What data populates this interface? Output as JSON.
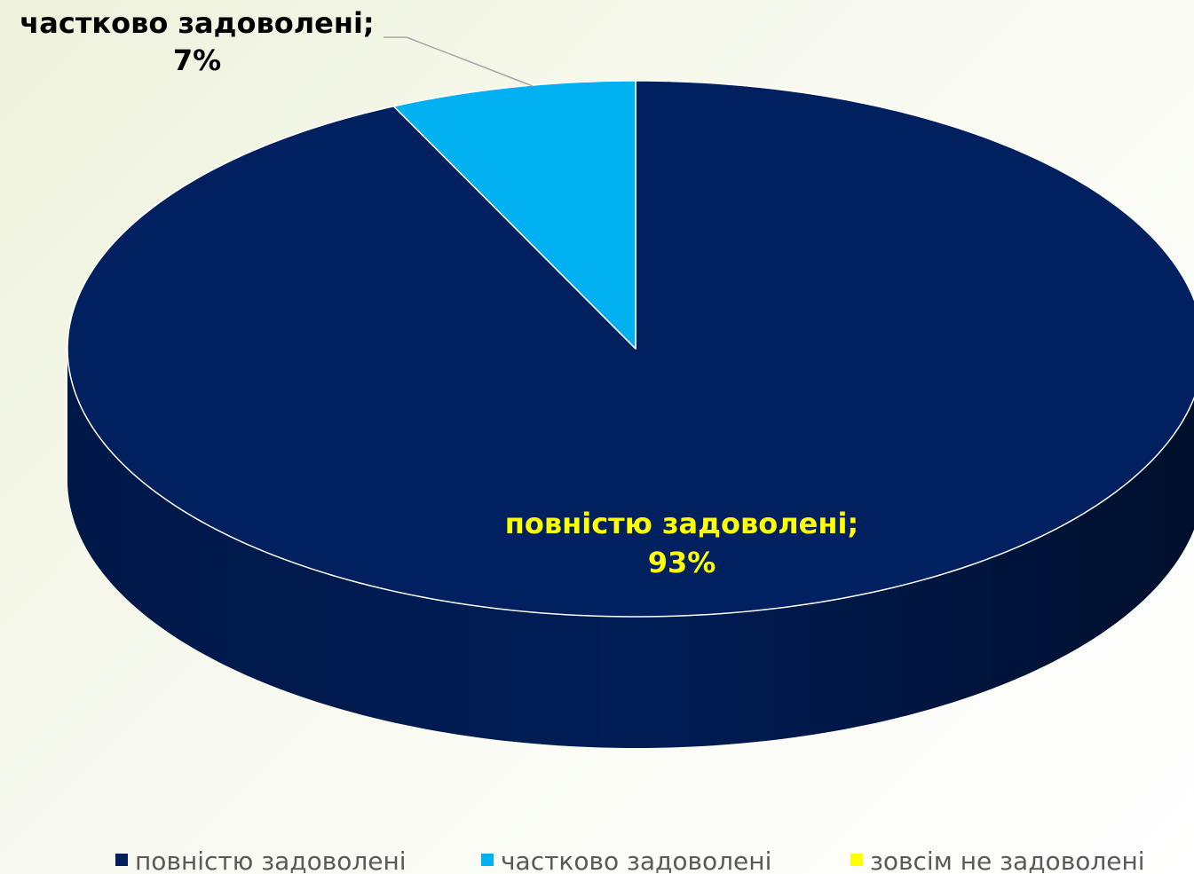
{
  "chart_data": {
    "type": "pie",
    "style": "3d",
    "categories": [
      "повністю задоволені",
      "частково задоволені",
      "зовсім не задоволені"
    ],
    "values": [
      93,
      7,
      0
    ],
    "value_labels": [
      "93%",
      "7%",
      null
    ],
    "data_label_names": [
      "повністю задоволені;",
      "частково задоволені;",
      null
    ],
    "colors": [
      "#002060",
      "#00b0f0",
      "#ffff00"
    ],
    "label_colors": [
      "#ffff00",
      "#000000",
      null
    ],
    "legend": "bottom"
  }
}
